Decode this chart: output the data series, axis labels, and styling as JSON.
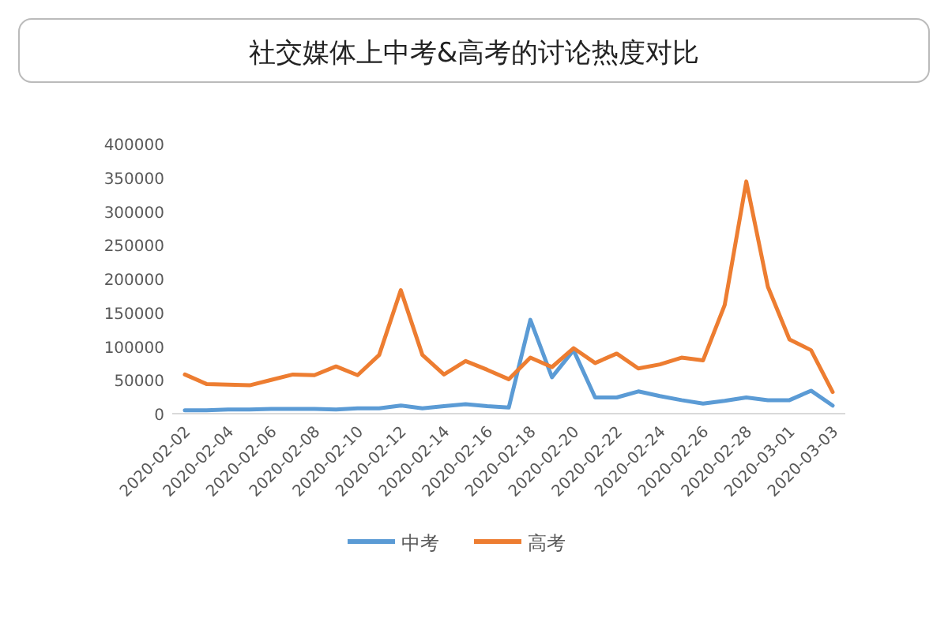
{
  "chart_data": {
    "type": "line",
    "title": "社交媒体上中考&高考的讨论热度对比",
    "categories": [
      "2020-02-02",
      null,
      "2020-02-04",
      null,
      "2020-02-06",
      null,
      "2020-02-08",
      null,
      "2020-02-10",
      null,
      "2020-02-12",
      null,
      "2020-02-14",
      null,
      "2020-02-16",
      null,
      "2020-02-18",
      null,
      "2020-02-20",
      null,
      "2020-02-22",
      null,
      "2020-02-24",
      null,
      "2020-02-26",
      null,
      "2020-02-28",
      null,
      "2020-03-01",
      null,
      "2020-03-03"
    ],
    "series": [
      {
        "name": "中考",
        "color": "#5b9bd5",
        "values": [
          5000,
          5000,
          6000,
          6000,
          7000,
          7000,
          7000,
          6000,
          8000,
          8000,
          12000,
          8000,
          11000,
          14000,
          11000,
          9000,
          139000,
          54000,
          94000,
          24000,
          24000,
          33000,
          26000,
          20000,
          15000,
          19000,
          24000,
          20000,
          20000,
          34000,
          12000
        ]
      },
      {
        "name": "高考",
        "color": "#ed7d31",
        "values": [
          58000,
          44000,
          43000,
          42000,
          50000,
          58000,
          57000,
          70000,
          57000,
          87000,
          183000,
          87000,
          58000,
          78000,
          65000,
          51000,
          83000,
          69000,
          97000,
          75000,
          89000,
          67000,
          73000,
          83000,
          79000,
          161000,
          344000,
          188000,
          110000,
          94000,
          32000
        ]
      }
    ],
    "ylim": [
      0,
      400000
    ],
    "yticks": [
      0,
      50000,
      100000,
      150000,
      200000,
      250000,
      300000,
      350000,
      400000
    ],
    "grid": false,
    "legend": "bottom",
    "marker": "none",
    "line_style": "solid"
  }
}
